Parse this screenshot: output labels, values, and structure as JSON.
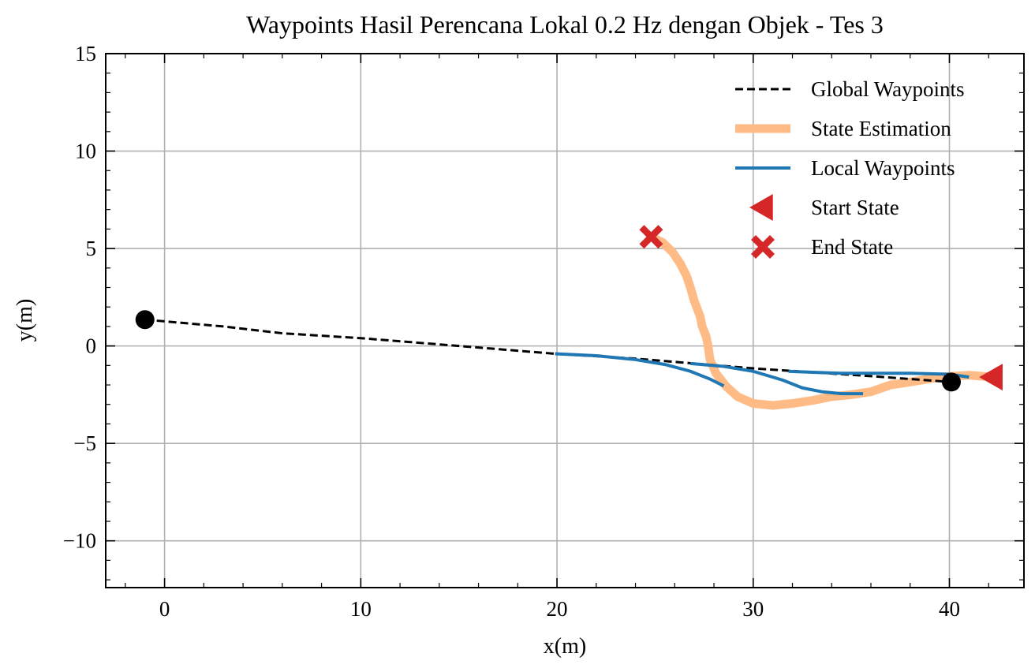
{
  "chart_data": {
    "type": "line",
    "title": "Waypoints Hasil Perencana Lokal 0.2 Hz dengan Objek - Tes 3",
    "xlabel": "x(m)",
    "ylabel": "y(m)",
    "xlim": [
      -3,
      43.8
    ],
    "ylim": [
      -12.4,
      15
    ],
    "xticks": [
      0,
      10,
      20,
      30,
      40
    ],
    "yticks": [
      15,
      10,
      5,
      0,
      -5,
      -10
    ],
    "grid": true,
    "legend_position": "upper-right",
    "series": [
      {
        "name": "Global Waypoints",
        "kind": "line",
        "style": "dashed",
        "color": "#000000",
        "x": [
          -1.0,
          3.0,
          6.0,
          10.0,
          15.0,
          19.9,
          24.0,
          27.0,
          30.0,
          33.0,
          36.0,
          40.1
        ],
        "y": [
          1.35,
          1.0,
          0.65,
          0.4,
          0.0,
          -0.4,
          -0.65,
          -0.9,
          -1.15,
          -1.35,
          -1.55,
          -1.85
        ]
      },
      {
        "name": "State Estimation",
        "kind": "line",
        "style": "solid",
        "color": "#ffbb85",
        "x": [
          42.2,
          41.0,
          39.5,
          38.0,
          37.0,
          36.0,
          35.0,
          34.0,
          33.0,
          32.0,
          31.0,
          30.0,
          29.2,
          28.6,
          28.1,
          27.8,
          27.7,
          27.6,
          27.4,
          27.3,
          27.0,
          26.8,
          26.6,
          26.3,
          25.9,
          25.4,
          24.8
        ],
        "y": [
          -1.6,
          -1.5,
          -1.6,
          -1.85,
          -2.0,
          -2.35,
          -2.5,
          -2.6,
          -2.8,
          -2.95,
          -3.05,
          -2.95,
          -2.6,
          -2.05,
          -1.4,
          -0.7,
          0.0,
          0.5,
          1.0,
          1.5,
          2.3,
          3.0,
          3.6,
          4.2,
          4.8,
          5.3,
          5.6
        ]
      },
      {
        "name": "Local Waypoints",
        "kind": "line",
        "style": "solid",
        "color": "#1f77b4",
        "segments": [
          {
            "x": [
              19.9,
              22.0,
              24.0,
              25.5,
              26.8,
              27.8,
              28.5
            ],
            "y": [
              -0.4,
              -0.5,
              -0.7,
              -0.95,
              -1.3,
              -1.7,
              -2.05
            ]
          },
          {
            "x": [
              26.8,
              28.5,
              30.0,
              31.5,
              32.5,
              33.5,
              34.5,
              35.6
            ],
            "y": [
              -0.9,
              -1.05,
              -1.3,
              -1.75,
              -2.15,
              -2.35,
              -2.45,
              -2.45
            ]
          },
          {
            "x": [
              31.8,
              33.0,
              34.5,
              36.0,
              38.0,
              40.0,
              41.0
            ],
            "y": [
              -1.3,
              -1.35,
              -1.4,
              -1.4,
              -1.4,
              -1.45,
              -1.6
            ]
          }
        ]
      },
      {
        "name": "Start State",
        "kind": "marker",
        "marker": "triangle-left",
        "color": "#d62728",
        "x": [
          42.2
        ],
        "y": [
          -1.6
        ]
      },
      {
        "name": "End State",
        "kind": "marker",
        "marker": "x-filled",
        "color": "#d62728",
        "x": [
          24.8
        ],
        "y": [
          5.6
        ]
      }
    ],
    "endpoints": {
      "color": "#000000",
      "x": [
        -1.0,
        40.1
      ],
      "y": [
        1.35,
        -1.85
      ]
    },
    "legend": [
      {
        "label": "Global Waypoints",
        "series": 0
      },
      {
        "label": "State Estimation",
        "series": 1
      },
      {
        "label": "Local Waypoints",
        "series": 2
      },
      {
        "label": "Start State",
        "series": 3
      },
      {
        "label": "End State",
        "series": 4
      }
    ]
  }
}
